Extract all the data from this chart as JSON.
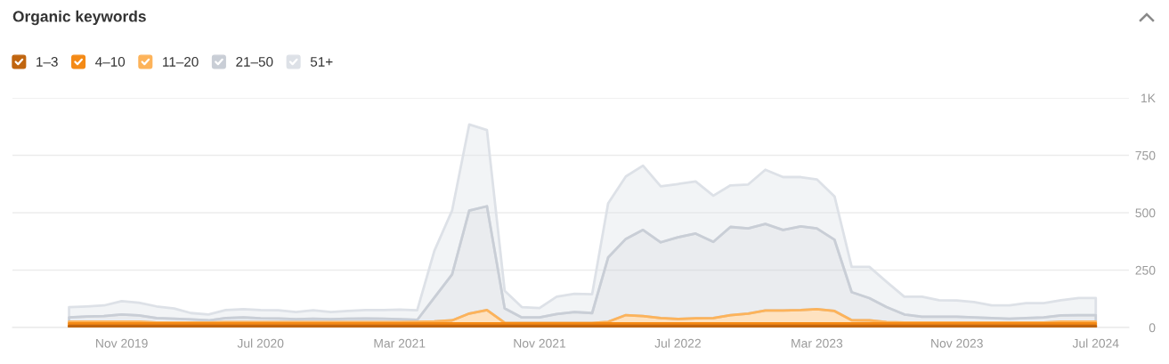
{
  "chart_data": {
    "type": "area",
    "title": "Organic keywords",
    "stacked": true,
    "x": [
      "2019-08",
      "2019-09",
      "2019-10",
      "2019-11",
      "2019-12",
      "2020-01",
      "2020-02",
      "2020-03",
      "2020-04",
      "2020-05",
      "2020-06",
      "2020-07",
      "2020-08",
      "2020-09",
      "2020-10",
      "2020-11",
      "2020-12",
      "2021-01",
      "2021-02",
      "2021-03",
      "2021-04",
      "2021-05",
      "2021-06",
      "2021-07",
      "2021-08",
      "2021-09",
      "2021-10",
      "2021-11",
      "2021-12",
      "2022-01",
      "2022-02",
      "2022-03",
      "2022-04",
      "2022-05",
      "2022-06",
      "2022-07",
      "2022-08",
      "2022-09",
      "2022-10",
      "2022-11",
      "2022-12",
      "2023-01",
      "2023-02",
      "2023-03",
      "2023-04",
      "2023-05",
      "2023-06",
      "2023-07",
      "2023-08",
      "2023-09",
      "2023-10",
      "2023-11",
      "2023-12",
      "2024-01",
      "2024-02",
      "2024-03",
      "2024-04",
      "2024-05",
      "2024-06",
      "2024-07"
    ],
    "series": [
      {
        "name": "1–3",
        "color": "#c0650f",
        "values": [
          7,
          7,
          7,
          7,
          7,
          7,
          7,
          7,
          7,
          7,
          7,
          7,
          7,
          7,
          7,
          7,
          7,
          7,
          7,
          7,
          7,
          7,
          7,
          7,
          7,
          7,
          7,
          7,
          7,
          7,
          7,
          7,
          7,
          7,
          7,
          7,
          7,
          7,
          7,
          7,
          7,
          7,
          7,
          7,
          7,
          7,
          7,
          7,
          7,
          7,
          7,
          7,
          7,
          7,
          7,
          7,
          7,
          7,
          7,
          7
        ]
      },
      {
        "name": "4–10",
        "color": "#f48a16",
        "values": [
          11,
          11,
          11,
          11,
          11,
          11,
          11,
          11,
          11,
          11,
          11,
          11,
          11,
          11,
          11,
          11,
          11,
          11,
          11,
          11,
          11,
          11,
          11,
          11,
          11,
          11,
          11,
          11,
          11,
          11,
          11,
          11,
          11,
          11,
          11,
          11,
          11,
          11,
          11,
          11,
          11,
          11,
          11,
          11,
          11,
          11,
          11,
          11,
          11,
          11,
          11,
          11,
          11,
          11,
          11,
          11,
          11,
          11,
          11,
          11
        ]
      },
      {
        "name": "11–20",
        "color": "#fdb35a",
        "values": [
          8,
          8,
          8,
          8,
          8,
          4,
          4,
          4,
          4,
          6,
          6,
          6,
          6,
          6,
          6,
          6,
          6,
          6,
          6,
          6,
          7,
          9,
          13,
          43,
          58,
          3,
          2,
          2,
          2,
          2,
          2,
          7,
          36,
          32,
          23,
          19,
          22,
          23,
          36,
          43,
          56,
          56,
          58,
          62,
          54,
          14,
          13,
          6,
          4,
          4,
          4,
          4,
          4,
          4,
          4,
          4,
          4,
          8,
          8,
          8
        ]
      },
      {
        "name": "21–50",
        "color": "#c9ced6",
        "values": [
          18,
          22,
          24,
          31,
          27,
          19,
          16,
          13,
          9,
          17,
          20,
          16,
          15,
          12,
          14,
          12,
          14,
          15,
          14,
          12,
          8,
          103,
          200,
          448,
          452,
          62,
          24,
          24,
          39,
          47,
          43,
          280,
          332,
          375,
          330,
          356,
          369,
          332,
          384,
          371,
          377,
          351,
          364,
          352,
          310,
          122,
          97,
          65,
          35,
          25,
          25,
          25,
          22,
          19,
          16,
          19,
          22,
          27,
          28,
          28
        ]
      },
      {
        "name": "51+",
        "color": "#dde1e7",
        "values": [
          45,
          44,
          46,
          58,
          55,
          51,
          45,
          28,
          26,
          35,
          36,
          36,
          36,
          31,
          37,
          31,
          34,
          37,
          38,
          42,
          42,
          204,
          278,
          375,
          332,
          77,
          45,
          41,
          75,
          80,
          82,
          236,
          272,
          280,
          244,
          232,
          227,
          201,
          181,
          191,
          236,
          230,
          215,
          213,
          189,
          110,
          136,
          110,
          77,
          87,
          72,
          71,
          67,
          55,
          58,
          65,
          62,
          66,
          74,
          74
        ]
      }
    ],
    "xlim": [
      "2019-04-24",
      "2024-08-28"
    ],
    "xticks": [
      {
        "value": "2019-11",
        "label": "Nov 2019"
      },
      {
        "value": "2020-07",
        "label": "Jul 2020"
      },
      {
        "value": "2021-03",
        "label": "Mar 2021"
      },
      {
        "value": "2021-11",
        "label": "Nov 2021"
      },
      {
        "value": "2022-07",
        "label": "Jul 2022"
      },
      {
        "value": "2023-03",
        "label": "Mar 2023"
      },
      {
        "value": "2023-11",
        "label": "Nov 2023"
      },
      {
        "value": "2024-07",
        "label": "Jul 2024"
      }
    ],
    "ylim": [
      0,
      1000
    ],
    "yticks": [
      0,
      250,
      500,
      750,
      {
        "value": 1000,
        "label": "1K"
      }
    ],
    "grid": "y",
    "legend": "top left"
  }
}
